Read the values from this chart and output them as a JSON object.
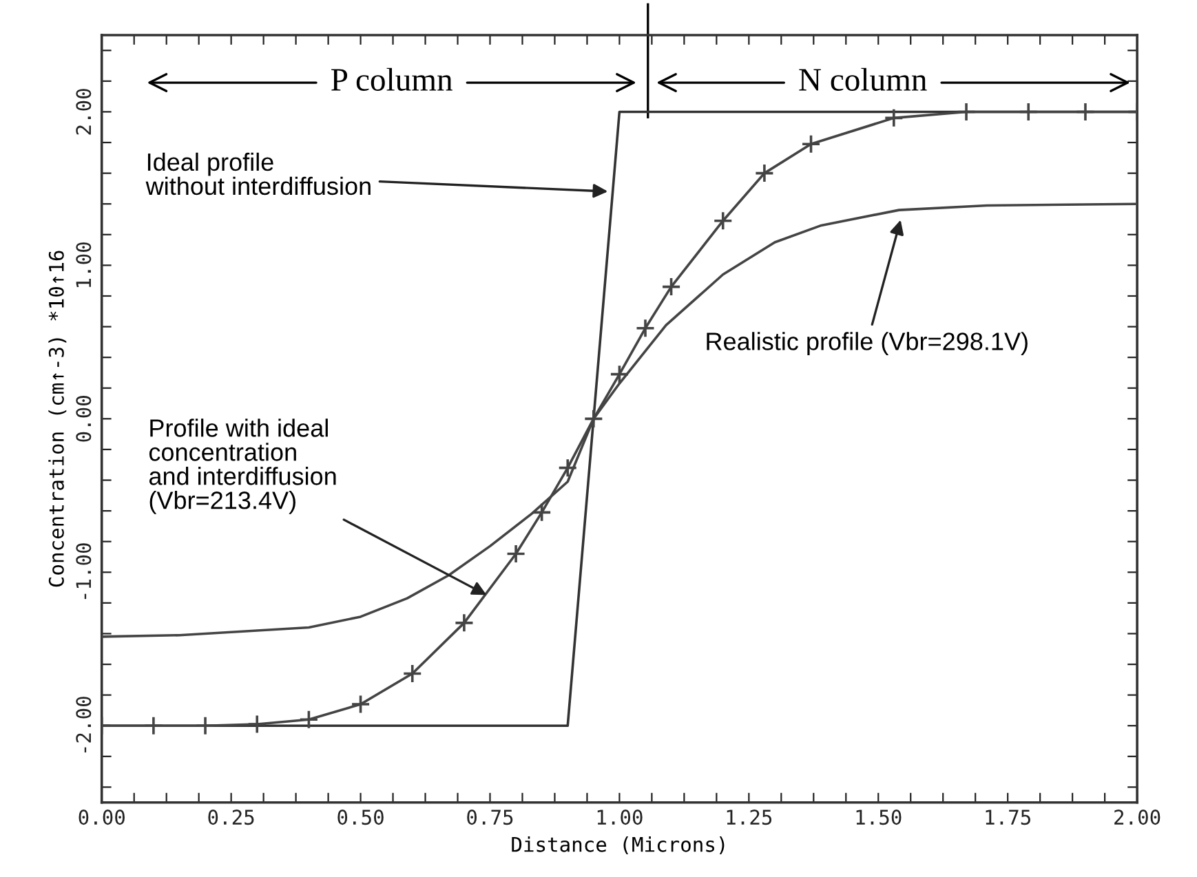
{
  "chart_data": {
    "type": "line",
    "xlabel": "Distance (Microns)",
    "ylabel": "Concentration (cm↑-3) *10↑16",
    "xlim": [
      0,
      2.0
    ],
    "ylim": [
      -2.5,
      2.5
    ],
    "xticks": [
      {
        "value": 0,
        "label": "0.00"
      },
      {
        "value": 0.0625,
        "label": null
      },
      {
        "value": 0.125,
        "label": null
      },
      {
        "value": 0.1875,
        "label": null
      },
      {
        "value": 0.25,
        "label": "0.25"
      },
      {
        "value": 0.3125,
        "label": null
      },
      {
        "value": 0.375,
        "label": null
      },
      {
        "value": 0.4375,
        "label": null
      },
      {
        "value": 0.5,
        "label": "0.50"
      },
      {
        "value": 0.5625,
        "label": null
      },
      {
        "value": 0.625,
        "label": null
      },
      {
        "value": 0.6875,
        "label": null
      },
      {
        "value": 0.75,
        "label": "0.75"
      },
      {
        "value": 0.8125,
        "label": null
      },
      {
        "value": 0.875,
        "label": null
      },
      {
        "value": 0.9375,
        "label": null
      },
      {
        "value": 1.0,
        "label": "1.00"
      },
      {
        "value": 1.0625,
        "label": null
      },
      {
        "value": 1.125,
        "label": null
      },
      {
        "value": 1.1875,
        "label": null
      },
      {
        "value": 1.25,
        "label": "1.25"
      },
      {
        "value": 1.3125,
        "label": null
      },
      {
        "value": 1.375,
        "label": null
      },
      {
        "value": 1.4375,
        "label": null
      },
      {
        "value": 1.5,
        "label": "1.50"
      },
      {
        "value": 1.5625,
        "label": null
      },
      {
        "value": 1.625,
        "label": null
      },
      {
        "value": 1.6875,
        "label": null
      },
      {
        "value": 1.75,
        "label": "1.75"
      },
      {
        "value": 1.8125,
        "label": null
      },
      {
        "value": 1.875,
        "label": null
      },
      {
        "value": 1.9375,
        "label": null
      },
      {
        "value": 2.0,
        "label": "2.00"
      }
    ],
    "yticks": [
      {
        "value": -2.4,
        "label": null
      },
      {
        "value": -2.2,
        "label": null
      },
      {
        "value": -2.0,
        "label": "-2.00"
      },
      {
        "value": -1.8,
        "label": null
      },
      {
        "value": -1.6,
        "label": null
      },
      {
        "value": -1.4,
        "label": null
      },
      {
        "value": -1.2,
        "label": null
      },
      {
        "value": -1.0,
        "label": "-1.00"
      },
      {
        "value": -0.8,
        "label": null
      },
      {
        "value": -0.6,
        "label": null
      },
      {
        "value": -0.4,
        "label": null
      },
      {
        "value": -0.2,
        "label": null
      },
      {
        "value": 0,
        "label": "0.00"
      },
      {
        "value": 0.2,
        "label": null
      },
      {
        "value": 0.4,
        "label": null
      },
      {
        "value": 0.6,
        "label": null
      },
      {
        "value": 0.8,
        "label": null
      },
      {
        "value": 1.0,
        "label": "1.00"
      },
      {
        "value": 1.2,
        "label": null
      },
      {
        "value": 1.4,
        "label": null
      },
      {
        "value": 1.6,
        "label": null
      },
      {
        "value": 1.8,
        "label": null
      },
      {
        "value": 2.0,
        "label": "2.00"
      },
      {
        "value": 2.2,
        "label": null
      },
      {
        "value": 2.4,
        "label": null
      }
    ],
    "grid": false,
    "legend": false,
    "series": [
      {
        "color": "#333333",
        "marker": "none",
        "x": [
          0,
          0.9,
          1.0,
          2.0
        ],
        "values": [
          -2.0,
          -2.0,
          2.0,
          2.0
        ]
      },
      {
        "color": "#444444",
        "marker": "cross",
        "x": [
          0,
          0.1,
          0.2,
          0.3,
          0.4,
          0.5,
          0.6,
          0.7,
          0.8,
          0.85,
          0.9,
          0.95,
          1.0,
          1.05,
          1.1,
          1.2,
          1.28,
          1.37,
          1.53,
          1.67,
          1.79,
          1.9,
          2.0
        ],
        "values": [
          -2.0,
          -2.0,
          -2.0,
          -1.99,
          -1.96,
          -1.86,
          -1.66,
          -1.33,
          -0.88,
          -0.61,
          -0.32,
          0,
          0.29,
          0.59,
          0.86,
          1.29,
          1.6,
          1.79,
          1.96,
          2.0,
          2.0,
          2.0,
          2.0
        ]
      },
      {
        "color": "#444444",
        "marker": "none",
        "x": [
          0,
          0.15,
          0.4,
          0.5,
          0.59,
          0.67,
          0.75,
          0.83,
          0.9,
          0.95,
          1.0,
          1.09,
          1.2,
          1.3,
          1.39,
          1.54,
          1.71,
          2.0
        ],
        "values": [
          -1.42,
          -1.41,
          -1.36,
          -1.29,
          -1.17,
          -1.02,
          -0.83,
          -0.62,
          -0.41,
          0,
          0.23,
          0.61,
          0.94,
          1.15,
          1.26,
          1.36,
          1.39,
          1.4
        ]
      }
    ],
    "annotations": [
      "P column",
      "N column",
      {
        "text": "Ideal profile\nwithout interdiffusion",
        "x": 0.985,
        "y": 1.48
      },
      {
        "text": "Profile with ideal\nconcentration\nand interdiffusion\n(Vbr=213.4V)",
        "x": 0.75,
        "y": -1.16
      },
      {
        "text": "Realistic profile (Vbr=298.1V)",
        "x": 1.545,
        "y": 1.32
      }
    ]
  }
}
